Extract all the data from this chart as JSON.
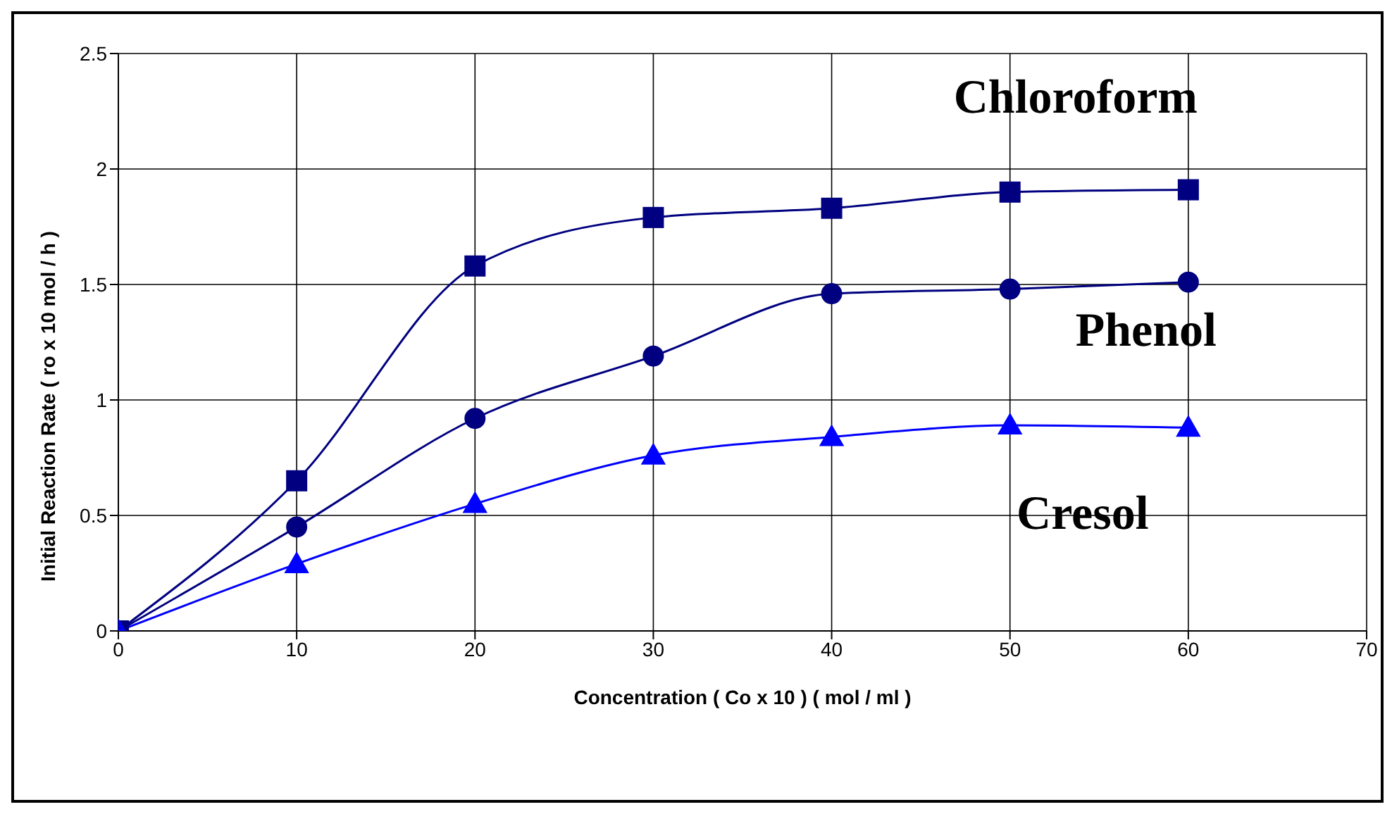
{
  "chart_data": {
    "type": "line",
    "xlabel": "Concentration ( Co x 10   ) ( mol / ml )",
    "ylabel": "Initial Reaction Rate ( ro x 10     mol / h  )",
    "x": [
      0,
      10,
      20,
      30,
      40,
      50,
      60
    ],
    "series": [
      {
        "name": "Chloroform",
        "color": "#000080",
        "marker": "square",
        "values": [
          0,
          0.65,
          1.58,
          1.79,
          1.83,
          1.9,
          1.91
        ]
      },
      {
        "name": "Phenol",
        "color": "#000080",
        "marker": "circle",
        "values": [
          0,
          0.45,
          0.92,
          1.19,
          1.46,
          1.48,
          1.51
        ]
      },
      {
        "name": "Cresol",
        "color": "#0000ff",
        "marker": "triangle",
        "values": [
          0,
          0.29,
          0.55,
          0.76,
          0.84,
          0.89,
          0.88
        ]
      }
    ],
    "xlim": [
      0,
      70
    ],
    "xticks": [
      0,
      10,
      20,
      30,
      40,
      50,
      60,
      70
    ],
    "ylim": [
      0,
      2.5
    ],
    "yticks": [
      0,
      0.5,
      1,
      1.5,
      2,
      2.5
    ],
    "grid": true,
    "legend": false
  }
}
